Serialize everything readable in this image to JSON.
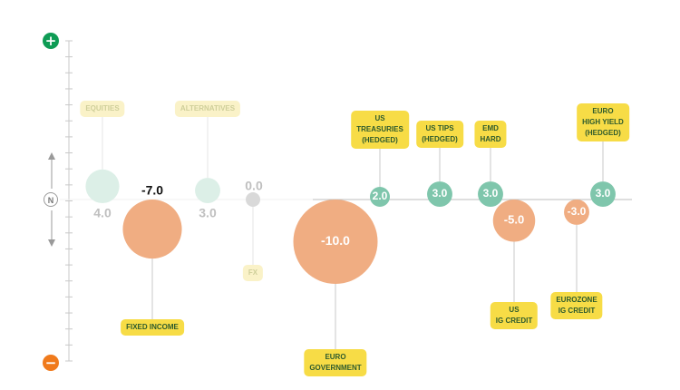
{
  "scale": {
    "positive_symbol": "+",
    "negative_symbol": "−",
    "neutral_symbol": "N"
  },
  "colors": {
    "positive_bubble": "#7fc6ac",
    "positive_bubble_faded": "#dcefe7",
    "negative_bubble": "#f0ad82",
    "neutral_bubble": "#d9d9d9",
    "tag": "#f7dc46",
    "tag_faded": "#faf2c8",
    "tag_text": "#2d5a2d",
    "plus_button": "#0f9c55",
    "minus_button": "#f07a1c"
  },
  "chart_data": {
    "type": "bubble",
    "title": "",
    "groups": [
      {
        "name": "EQUITIES",
        "value": 4.0,
        "label": "4.0",
        "faded": true
      },
      {
        "name": "FIXED INCOME",
        "value": -7.0,
        "label": "-7.0",
        "faded": false
      },
      {
        "name": "ALTERNATIVES",
        "value": 3.0,
        "label": "3.0",
        "faded": true
      },
      {
        "name": "FX",
        "value": 0.0,
        "label": "0.0",
        "faded": true
      }
    ],
    "sub_categories": [
      {
        "name": "EURO GOVERNMENT",
        "value": -10.0,
        "label": "-10.0"
      },
      {
        "name": "US TREASURIES (HEDGED)",
        "value": 2.0,
        "label": "2.0"
      },
      {
        "name": "US TIPS (HEDGED)",
        "value": 3.0,
        "label": "3.0"
      },
      {
        "name": "EMD HARD",
        "value": 3.0,
        "label": "3.0"
      },
      {
        "name": "US IG CREDIT",
        "value": -5.0,
        "label": "-5.0"
      },
      {
        "name": "EUROZONE IG CREDIT",
        "value": -3.0,
        "label": "-3.0"
      },
      {
        "name": "EURO HIGH YIELD (HEDGED)",
        "value": 3.0,
        "label": "3.0"
      }
    ],
    "tag_lines": {
      "EQUITIES": [
        "EQUITIES"
      ],
      "FIXED INCOME": [
        "FIXED INCOME"
      ],
      "ALTERNATIVES": [
        "ALTERNATIVES"
      ],
      "FX": [
        "FX"
      ],
      "EURO GOVERNMENT": [
        "EURO",
        "GOVERNMENT"
      ],
      "US TREASURIES (HEDGED)": [
        "US",
        "TREASURIES",
        "(HEDGED)"
      ],
      "US TIPS (HEDGED)": [
        "US TIPS",
        "(HEDGED)"
      ],
      "EMD HARD": [
        "EMD",
        "HARD"
      ],
      "US IG CREDIT": [
        "US",
        "IG CREDIT"
      ],
      "EUROZONE IG CREDIT": [
        "EUROZONE",
        "IG CREDIT"
      ],
      "EURO HIGH YIELD (HEDGED)": [
        "EURO",
        "HIGH YIELD",
        "(HEDGED)"
      ]
    },
    "value_range": [
      -10,
      10
    ],
    "grid": false,
    "legend": "none"
  }
}
